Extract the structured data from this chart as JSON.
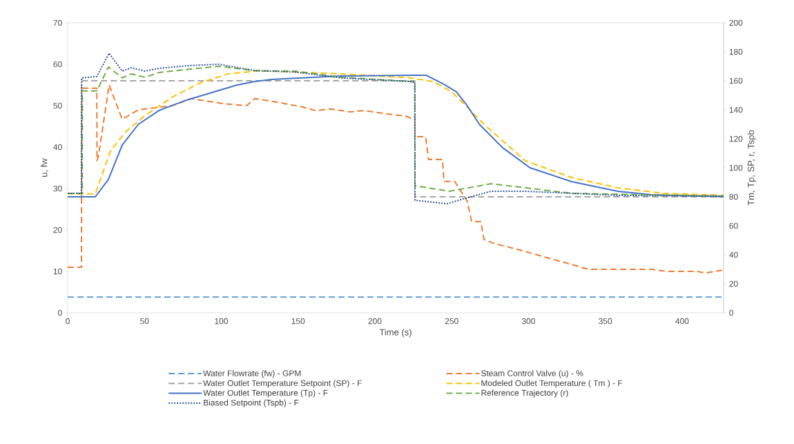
{
  "chart_data": {
    "type": "line",
    "xlabel": "Time (s)",
    "ylabel": "u, fw",
    "y2label": "Tm, Tp, SP, r, Tspb",
    "xlim": [
      0,
      427
    ],
    "xticks": [
      0,
      50,
      100,
      150,
      200,
      250,
      300,
      350,
      400
    ],
    "ylim": [
      0,
      70
    ],
    "yticks": [
      0,
      10,
      20,
      30,
      40,
      50,
      60,
      70
    ],
    "y2lim": [
      0,
      200
    ],
    "y2ticks": [
      0,
      20,
      40,
      60,
      80,
      100,
      120,
      140,
      160,
      180,
      200
    ],
    "legend": "bottom",
    "series": [
      {
        "name": "Water Flowrate (fw) - GPM",
        "color": "#5b9bd5",
        "line_style": "dashed",
        "axis": "y",
        "x": [
          0,
          427
        ],
        "values": [
          3.8,
          3.8
        ]
      },
      {
        "name": "Steam Control Valve (u) - %",
        "color": "#ed7d31",
        "line_style": "dashed",
        "axis": "y",
        "x": [
          0,
          9,
          9.1,
          19,
          19.1,
          20,
          27,
          35.5,
          46,
          68,
          80.5,
          101,
          116.5,
          122,
          137,
          152.5,
          161.5,
          170.5,
          184,
          193,
          208,
          220,
          225,
          226,
          226.1,
          233,
          235,
          244,
          245,
          252,
          260,
          263,
          269,
          271,
          278,
          296,
          312,
          323,
          339,
          380,
          390,
          410,
          415,
          426
        ],
        "values": [
          11,
          11,
          54.2,
          54.2,
          36.7,
          37.7,
          55,
          46.7,
          49,
          50,
          51.7,
          50.5,
          50,
          51.7,
          50.8,
          49.7,
          48.8,
          49.2,
          48.5,
          48.8,
          48,
          47.5,
          46.7,
          46.5,
          42.5,
          42.5,
          37,
          37,
          31.7,
          31.7,
          27,
          22,
          22,
          17.7,
          16.7,
          15,
          13.3,
          12.2,
          10.5,
          10.5,
          10,
          10,
          9.6,
          10.3
        ]
      },
      {
        "name": "Water Outlet Temperature Setpoint (SP) - F",
        "color": "#a5a5a5",
        "line_style": "dashed",
        "axis": "y2",
        "x": [
          9,
          9.1,
          226,
          226.1,
          427
        ],
        "values": [
          80,
          160,
          160,
          80,
          80
        ]
      },
      {
        "name": "Modeled Outlet Temperature ( Tm ) - F",
        "color": "#ffc000",
        "line_style": "dashed",
        "axis": "y2",
        "x": [
          0,
          18,
          25,
          28,
          38,
          50.4,
          68.4,
          86.4,
          104.4,
          122.4,
          133,
          178,
          223,
          238,
          250,
          260,
          271,
          298,
          328,
          358,
          388,
          427
        ],
        "values": [
          82,
          82,
          103,
          112,
          125,
          136,
          149,
          158.6,
          164.8,
          166.7,
          166.7,
          164.8,
          162,
          159.5,
          152.4,
          142,
          130,
          104.8,
          93.3,
          86.2,
          82.4,
          81
        ]
      },
      {
        "name": "Water Outlet Temperature (Tp) - F",
        "color": "#4472c4",
        "line_style": "solid",
        "axis": "y2",
        "x": [
          0,
          18,
          26.5,
          35.5,
          46,
          59.4,
          77.4,
          95.4,
          110,
          122,
          133,
          178,
          223,
          233.5,
          245,
          253,
          260,
          268,
          283,
          301,
          328,
          358,
          380,
          427
        ],
        "values": [
          80,
          80,
          92,
          115.7,
          130,
          139.5,
          146.7,
          152.4,
          157,
          159.5,
          161,
          163.3,
          163.8,
          163.8,
          157.6,
          152.4,
          143,
          130,
          114,
          100,
          90.5,
          83.8,
          81.4,
          80
        ]
      },
      {
        "name": "Reference Trajectory (r)",
        "color": "#70ad47",
        "line_style": "dashed",
        "axis": "y2",
        "x": [
          0,
          9.5,
          9.6,
          19,
          26.5,
          35.5,
          41.4,
          50.4,
          59.4,
          79,
          98.5,
          122,
          148,
          178,
          223,
          226,
          226.1,
          248.5,
          275.5,
          298,
          328,
          427
        ],
        "values": [
          82.4,
          82.4,
          153,
          153,
          169.5,
          162,
          164.8,
          162.4,
          165.7,
          168,
          170,
          167,
          166.7,
          162.4,
          159.5,
          159,
          87.6,
          83.8,
          89,
          86.2,
          82.4,
          80.5
        ]
      },
      {
        "name": "Biased Setpoint (Tspb) - F",
        "color": "#2f5597",
        "line_style": "dotted",
        "axis": "y2",
        "x": [
          0,
          9,
          9.1,
          19,
          27,
          35.5,
          41.4,
          50.4,
          59.4,
          79,
          98.5,
          122,
          148,
          178,
          223,
          226,
          226.1,
          247,
          257.5,
          275.5,
          298,
          328,
          358,
          427
        ],
        "values": [
          82.4,
          82.4,
          162,
          163,
          179,
          166.7,
          169,
          166.7,
          168.6,
          170.5,
          171.4,
          167,
          166,
          162,
          159.5,
          159,
          77.6,
          75.2,
          78.5,
          83.8,
          83.8,
          82.4,
          81,
          80.5
        ]
      }
    ]
  }
}
